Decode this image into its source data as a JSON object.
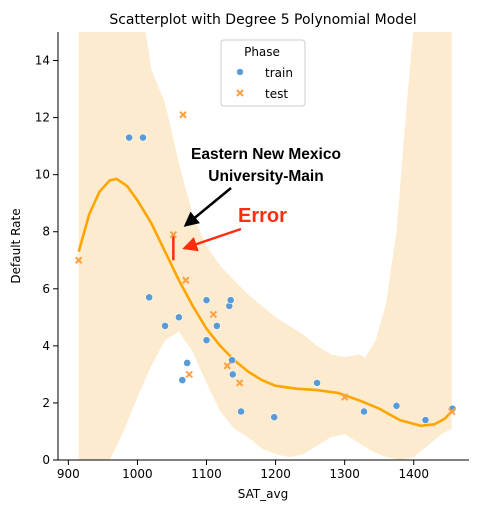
{
  "chart_data": {
    "type": "scatter",
    "title": "Scatterplot with Degree 5 Polynomial Model",
    "xlabel": "SAT_avg",
    "ylabel": "Default Rate",
    "xlim": [
      885,
      1480
    ],
    "ylim": [
      0,
      15
    ],
    "xticks": [
      900,
      1000,
      1100,
      1200,
      1300,
      1400
    ],
    "yticks": [
      0,
      2,
      4,
      6,
      8,
      10,
      12,
      14
    ],
    "grid": false,
    "legend": {
      "title": "Phase",
      "placement": "top-center",
      "entries": [
        {
          "label": "train",
          "marker": "circle",
          "color": "#5b9bd5"
        },
        {
          "label": "test",
          "marker": "x",
          "color": "#ffa040"
        }
      ]
    },
    "series": [
      {
        "name": "train",
        "marker": "circle",
        "color": "#5b9bd5",
        "points": [
          [
            988,
            11.3
          ],
          [
            1008,
            11.3
          ],
          [
            1017,
            5.7
          ],
          [
            1040,
            4.7
          ],
          [
            1060,
            5.0
          ],
          [
            1065,
            2.8
          ],
          [
            1072,
            3.4
          ],
          [
            1100,
            4.2
          ],
          [
            1100,
            5.6
          ],
          [
            1115,
            4.7
          ],
          [
            1133,
            5.4
          ],
          [
            1135,
            5.6
          ],
          [
            1137,
            3.5
          ],
          [
            1138,
            3.0
          ],
          [
            1150,
            1.7
          ],
          [
            1198,
            1.5
          ],
          [
            1260,
            2.7
          ],
          [
            1328,
            1.7
          ],
          [
            1375,
            1.9
          ],
          [
            1417,
            1.4
          ],
          [
            1456,
            1.8
          ]
        ]
      },
      {
        "name": "test",
        "marker": "x",
        "color": "#ffa040",
        "points": [
          [
            915,
            7.0
          ],
          [
            1052,
            7.9
          ],
          [
            1066,
            12.1
          ],
          [
            1070,
            6.3
          ],
          [
            1075,
            3.0
          ],
          [
            1110,
            5.1
          ],
          [
            1130,
            3.3
          ],
          [
            1148,
            2.7
          ],
          [
            1300,
            2.2
          ],
          [
            1455,
            1.7
          ]
        ]
      }
    ],
    "model_curve": {
      "name": "Degree 5 polynomial fit",
      "color": "#ffa500",
      "points": [
        [
          915,
          7.3
        ],
        [
          930,
          8.6
        ],
        [
          945,
          9.4
        ],
        [
          960,
          9.8
        ],
        [
          970,
          9.85
        ],
        [
          985,
          9.6
        ],
        [
          1000,
          9.1
        ],
        [
          1020,
          8.3
        ],
        [
          1040,
          7.3
        ],
        [
          1060,
          6.3
        ],
        [
          1080,
          5.4
        ],
        [
          1100,
          4.6
        ],
        [
          1120,
          4.0
        ],
        [
          1140,
          3.5
        ],
        [
          1160,
          3.1
        ],
        [
          1180,
          2.8
        ],
        [
          1200,
          2.6
        ],
        [
          1230,
          2.5
        ],
        [
          1260,
          2.45
        ],
        [
          1290,
          2.35
        ],
        [
          1320,
          2.1
        ],
        [
          1350,
          1.8
        ],
        [
          1380,
          1.4
        ],
        [
          1410,
          1.2
        ],
        [
          1430,
          1.25
        ],
        [
          1445,
          1.45
        ],
        [
          1455,
          1.7
        ]
      ]
    },
    "confidence_band": {
      "color": "#fdebd0",
      "upper": [
        [
          915,
          16
        ],
        [
          935,
          16
        ],
        [
          955,
          16
        ],
        [
          975,
          16
        ],
        [
          990,
          16
        ],
        [
          1000,
          16
        ],
        [
          1010,
          15.3
        ],
        [
          1020,
          13.7
        ],
        [
          1040,
          12.5
        ],
        [
          1060,
          10.4
        ],
        [
          1080,
          8.6
        ],
        [
          1100,
          7.5
        ],
        [
          1120,
          6.8
        ],
        [
          1140,
          6.3
        ],
        [
          1160,
          5.8
        ],
        [
          1180,
          5.4
        ],
        [
          1200,
          5.0
        ],
        [
          1220,
          4.7
        ],
        [
          1240,
          4.4
        ],
        [
          1260,
          4.0
        ],
        [
          1280,
          3.7
        ],
        [
          1300,
          3.6
        ],
        [
          1320,
          3.7
        ],
        [
          1330,
          3.6
        ],
        [
          1345,
          4.2
        ],
        [
          1360,
          5.5
        ],
        [
          1375,
          8.0
        ],
        [
          1390,
          12.5
        ],
        [
          1400,
          15.2
        ],
        [
          1410,
          16
        ],
        [
          1455,
          16
        ]
      ],
      "lower": [
        [
          915,
          0
        ],
        [
          933,
          0
        ],
        [
          940,
          -0.5
        ],
        [
          960,
          0
        ],
        [
          980,
          1.0
        ],
        [
          1000,
          2.2
        ],
        [
          1020,
          3.3
        ],
        [
          1040,
          4.2
        ],
        [
          1060,
          4.5
        ],
        [
          1080,
          3.8
        ],
        [
          1100,
          2.7
        ],
        [
          1120,
          1.7
        ],
        [
          1140,
          1.1
        ],
        [
          1160,
          0.8
        ],
        [
          1180,
          0.4
        ],
        [
          1200,
          0.2
        ],
        [
          1220,
          0.1
        ],
        [
          1240,
          0.2
        ],
        [
          1260,
          0.5
        ],
        [
          1280,
          0.8
        ],
        [
          1300,
          0.9
        ],
        [
          1320,
          0.6
        ],
        [
          1340,
          0.3
        ],
        [
          1360,
          0.1
        ],
        [
          1380,
          0
        ],
        [
          1400,
          0.1
        ],
        [
          1420,
          0.5
        ],
        [
          1440,
          0.9
        ],
        [
          1455,
          1.1
        ]
      ]
    },
    "annotations": [
      {
        "text_lines": [
          "Eastern New Mexico",
          "University-Main"
        ],
        "color": "#000000",
        "arrow_to": [
          1072,
          8.2
        ]
      },
      {
        "text": "Error",
        "color": "#ff2d10",
        "arrow_to": [
          1075,
          7.4
        ]
      }
    ],
    "error_segment": {
      "x": 1052,
      "y_from": 7.0,
      "y_to": 7.9,
      "color": "#ff2d10"
    }
  }
}
